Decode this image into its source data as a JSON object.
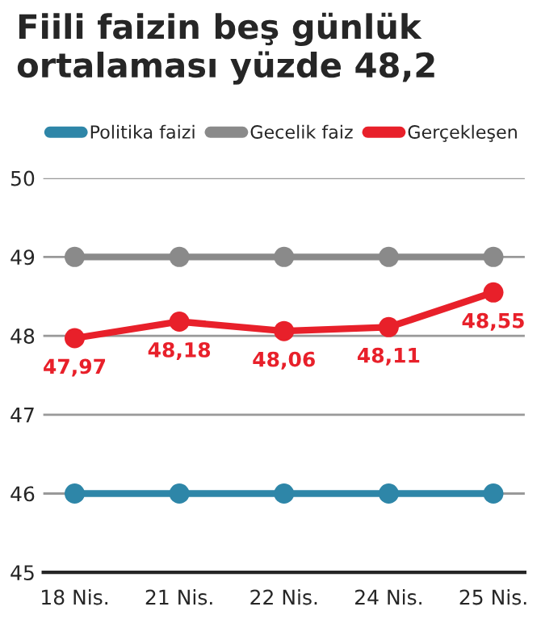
{
  "chart_data": {
    "type": "line",
    "title": "Fiili faizin beş günlük ortalaması yüzde 48,2",
    "categories": [
      "18 Nis.",
      "21 Nis.",
      "22 Nis.",
      "24 Nis.",
      "25 Nis."
    ],
    "series": [
      {
        "name": "Politika faizi",
        "color": "#2e86a8",
        "values": [
          46,
          46,
          46,
          46,
          46
        ]
      },
      {
        "name": "Gecelik faiz",
        "color": "#8a8a8a",
        "values": [
          49,
          49,
          49,
          49,
          49
        ]
      },
      {
        "name": "Gerçekleşen",
        "color": "#e8202a",
        "values": [
          47.97,
          48.18,
          48.06,
          48.11,
          48.55
        ],
        "value_labels": [
          "47,97",
          "48,18",
          "48,06",
          "48,11",
          "48,55"
        ]
      }
    ],
    "ylim": [
      45,
      50
    ],
    "yticks": [
      45,
      46,
      47,
      48,
      49,
      50
    ],
    "grid": "y",
    "legend": "top",
    "marker": "circle",
    "line_style": "solid"
  }
}
